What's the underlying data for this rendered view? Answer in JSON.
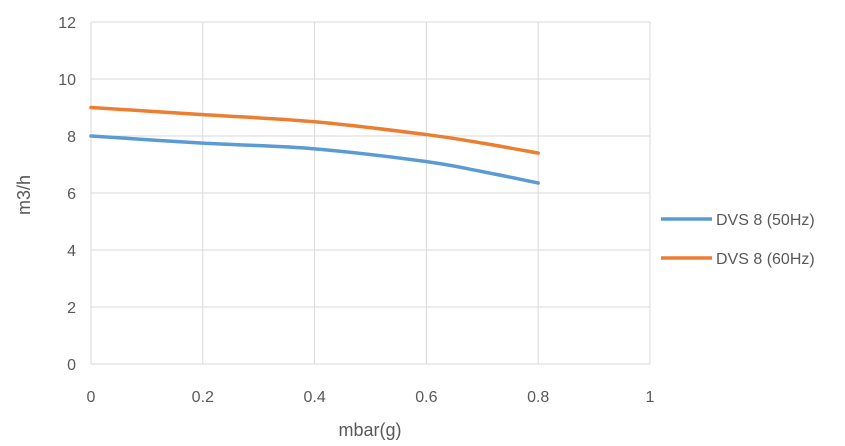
{
  "chart_data": {
    "type": "line",
    "xlabel": "mbar(g)",
    "ylabel": "m3/h",
    "xlim": [
      0,
      1
    ],
    "ylim": [
      0,
      12
    ],
    "x_ticks": [
      "0",
      "0.2",
      "0.4",
      "0.6",
      "0.8",
      "1"
    ],
    "y_ticks": [
      "0",
      "2",
      "4",
      "6",
      "8",
      "10",
      "12"
    ],
    "grid": true,
    "legend_position": "right",
    "series": [
      {
        "name": "DVS 8 (50Hz)",
        "color": "#5B9BD5",
        "x": [
          0,
          0.2,
          0.4,
          0.6,
          0.7,
          0.8
        ],
        "y": [
          8.0,
          7.75,
          7.55,
          7.1,
          6.75,
          6.35
        ]
      },
      {
        "name": "DVS 8 (60Hz)",
        "color": "#ED7D31",
        "x": [
          0,
          0.2,
          0.4,
          0.6,
          0.7,
          0.8
        ],
        "y": [
          9.0,
          8.75,
          8.5,
          8.05,
          7.75,
          7.4
        ]
      }
    ]
  }
}
